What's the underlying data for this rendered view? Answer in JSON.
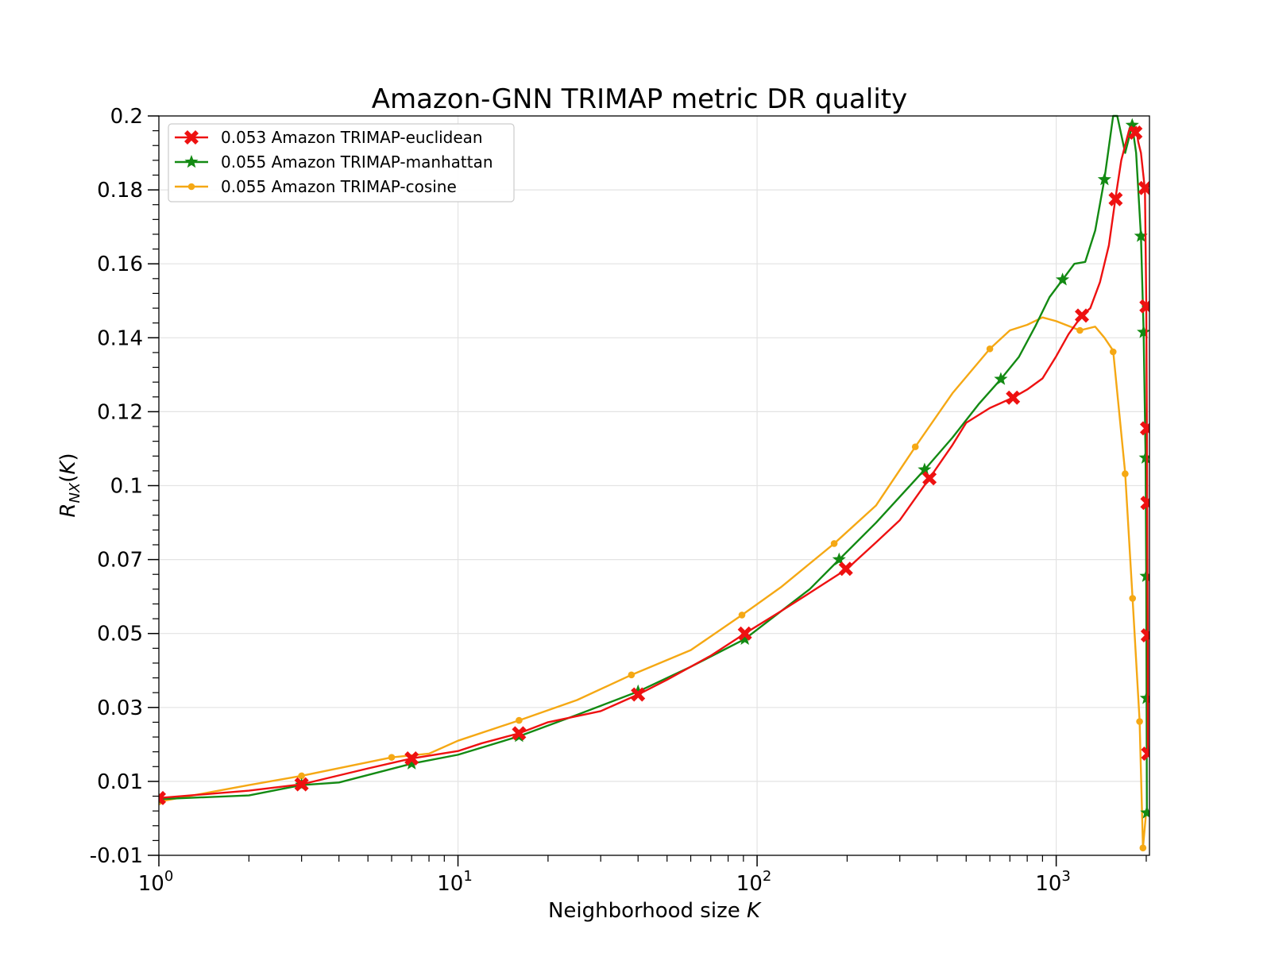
{
  "chart_data": {
    "type": "line",
    "title": "Amazon-GNN TRIMAP metric DR quality",
    "xlabel": "Neighborhood size K",
    "ylabel": "R_NX(K)",
    "xscale": "log",
    "xlim": [
      1,
      2050
    ],
    "ylim": [
      -0.01,
      0.2
    ],
    "grid": true,
    "legend_position": "upper-left",
    "x_tick_labels": [
      {
        "value": 1,
        "base": "10",
        "exp": "0"
      },
      {
        "value": 10,
        "base": "10",
        "exp": "1"
      },
      {
        "value": 100,
        "base": "10",
        "exp": "2"
      },
      {
        "value": 1000,
        "base": "10",
        "exp": "3"
      }
    ],
    "y_ticks": [
      -0.01,
      0.01,
      0.03,
      0.05,
      0.07,
      0.1,
      0.12,
      0.14,
      0.16,
      0.18,
      0.2
    ],
    "y_tick_labels": [
      "-0.01",
      "0.01",
      "0.03",
      "0.05",
      "0.07",
      "0.1",
      "0.12",
      "0.14",
      "0.16",
      "0.18",
      "0.2"
    ],
    "series": [
      {
        "name": "0.053 Amazon TRIMAP-euclidean",
        "color": "#ee1111",
        "marker": "X",
        "points": [
          [
            1,
            0.0055
          ],
          [
            2,
            0.0075
          ],
          [
            3,
            0.0092
          ],
          [
            5,
            0.0135
          ],
          [
            7,
            0.0162
          ],
          [
            10,
            0.0182
          ],
          [
            12,
            0.0203
          ],
          [
            16,
            0.023
          ],
          [
            20,
            0.026
          ],
          [
            30,
            0.029
          ],
          [
            40,
            0.0335
          ],
          [
            50,
            0.0375
          ],
          [
            70,
            0.044
          ],
          [
            91,
            0.05
          ],
          [
            120,
            0.056
          ],
          [
            150,
            0.061
          ],
          [
            200,
            0.0675
          ],
          [
            250,
            0.077
          ],
          [
            300,
            0.086
          ],
          [
            377,
            0.102
          ],
          [
            450,
            0.111
          ],
          [
            500,
            0.117
          ],
          [
            600,
            0.121
          ],
          [
            717,
            0.1238
          ],
          [
            800,
            0.126
          ],
          [
            900,
            0.129
          ],
          [
            1000,
            0.135
          ],
          [
            1100,
            0.141
          ],
          [
            1219,
            0.146
          ],
          [
            1300,
            0.148
          ],
          [
            1400,
            0.155
          ],
          [
            1500,
            0.165
          ],
          [
            1580,
            0.178
          ],
          [
            1650,
            0.188
          ],
          [
            1750,
            0.196
          ],
          [
            1850,
            0.197
          ],
          [
            1880,
            0.193
          ],
          [
            1920,
            0.19
          ],
          [
            1980,
            0.18
          ],
          [
            2000,
            0.15
          ],
          [
            2010,
            0.115
          ],
          [
            2015,
            0.09
          ],
          [
            2020,
            0.06
          ],
          [
            2023,
            0.048
          ],
          [
            2026,
            0.02
          ],
          [
            2030,
            0.0175
          ]
        ],
        "markers_at": [
          [
            1,
            0.0055
          ],
          [
            3,
            0.0092
          ],
          [
            7,
            0.0162
          ],
          [
            16,
            0.023
          ],
          [
            40,
            0.0335
          ],
          [
            91,
            0.05
          ],
          [
            198,
            0.0675
          ],
          [
            377,
            0.102
          ],
          [
            717,
            0.1238
          ],
          [
            1219,
            0.146
          ],
          [
            1580,
            0.1775
          ],
          [
            1840,
            0.1955
          ],
          [
            1985,
            0.1805
          ],
          [
            2003,
            0.1485
          ],
          [
            2012,
            0.1155
          ],
          [
            2018,
            0.093
          ],
          [
            2024,
            0.0495
          ],
          [
            2030,
            0.0175
          ]
        ]
      },
      {
        "name": "0.055 Amazon TRIMAP-manhattan",
        "color": "#138a13",
        "marker": "*",
        "points": [
          [
            1,
            0.0052
          ],
          [
            2,
            0.0062
          ],
          [
            3,
            0.009
          ],
          [
            4,
            0.0097
          ],
          [
            7,
            0.0148
          ],
          [
            10,
            0.0172
          ],
          [
            16,
            0.0222
          ],
          [
            25,
            0.028
          ],
          [
            40,
            0.0343
          ],
          [
            60,
            0.041
          ],
          [
            91,
            0.0485
          ],
          [
            150,
            0.062
          ],
          [
            188,
            0.07
          ],
          [
            250,
            0.085
          ],
          [
            363,
            0.1043
          ],
          [
            450,
            0.113
          ],
          [
            550,
            0.122
          ],
          [
            653,
            0.1288
          ],
          [
            750,
            0.1348
          ],
          [
            850,
            0.143
          ],
          [
            950,
            0.151
          ],
          [
            1050,
            0.1557
          ],
          [
            1150,
            0.16
          ],
          [
            1250,
            0.1605
          ],
          [
            1350,
            0.169
          ],
          [
            1450,
            0.183
          ],
          [
            1550,
            0.2
          ],
          [
            1600,
            0.2
          ],
          [
            1700,
            0.19
          ],
          [
            1795,
            0.1975
          ],
          [
            1850,
            0.19
          ],
          [
            1920,
            0.1675
          ],
          [
            1960,
            0.1415
          ],
          [
            1990,
            0.1075
          ],
          [
            2000,
            0.0655
          ],
          [
            2005,
            0.0325
          ],
          [
            2010,
            0.0015
          ]
        ],
        "markers_at": [
          [
            1,
            0.0052
          ],
          [
            3,
            0.009
          ],
          [
            7,
            0.0148
          ],
          [
            16,
            0.0222
          ],
          [
            40,
            0.0343
          ],
          [
            91,
            0.0485
          ],
          [
            188,
            0.07
          ],
          [
            363,
            0.1043
          ],
          [
            653,
            0.1288
          ],
          [
            1050,
            0.1557
          ],
          [
            1450,
            0.1828
          ],
          [
            1795,
            0.1975
          ],
          [
            1920,
            0.1675
          ],
          [
            1960,
            0.1415
          ],
          [
            1990,
            0.1075
          ],
          [
            2000,
            0.0655
          ],
          [
            2005,
            0.0325
          ],
          [
            2010,
            0.0015
          ]
        ]
      },
      {
        "name": "0.055 Amazon TRIMAP-cosine",
        "color": "#f5a814",
        "marker": "o",
        "points": [
          [
            1,
            0.0045
          ],
          [
            2,
            0.009
          ],
          [
            3,
            0.0115
          ],
          [
            6,
            0.0165
          ],
          [
            8,
            0.0175
          ],
          [
            10,
            0.021
          ],
          [
            16,
            0.0265
          ],
          [
            25,
            0.032
          ],
          [
            38,
            0.0388
          ],
          [
            60,
            0.0455
          ],
          [
            89,
            0.055
          ],
          [
            120,
            0.0625
          ],
          [
            181,
            0.0765
          ],
          [
            250,
            0.092
          ],
          [
            338,
            0.1105
          ],
          [
            450,
            0.125
          ],
          [
            600,
            0.137
          ],
          [
            700,
            0.142
          ],
          [
            800,
            0.1435
          ],
          [
            900,
            0.1455
          ],
          [
            1000,
            0.1445
          ],
          [
            1200,
            0.142
          ],
          [
            1350,
            0.143
          ],
          [
            1450,
            0.14
          ],
          [
            1550,
            0.1365
          ],
          [
            1700,
            0.1035
          ],
          [
            1800,
            0.0595
          ],
          [
            1900,
            0.0265
          ],
          [
            1950,
            -0.008
          ],
          [
            2000,
            0.002
          ]
        ],
        "markers_at": [
          [
            1,
            0.0045
          ],
          [
            3,
            0.0115
          ],
          [
            6,
            0.0165
          ],
          [
            16,
            0.0265
          ],
          [
            38,
            0.0388
          ],
          [
            89,
            0.055
          ],
          [
            181,
            0.0765
          ],
          [
            338,
            0.1105
          ],
          [
            600,
            0.137
          ],
          [
            1200,
            0.142
          ],
          [
            1550,
            0.1362
          ],
          [
            1700,
            0.1032
          ],
          [
            1800,
            0.0595
          ],
          [
            1900,
            0.0262
          ],
          [
            1950,
            -0.008
          ]
        ]
      }
    ]
  }
}
